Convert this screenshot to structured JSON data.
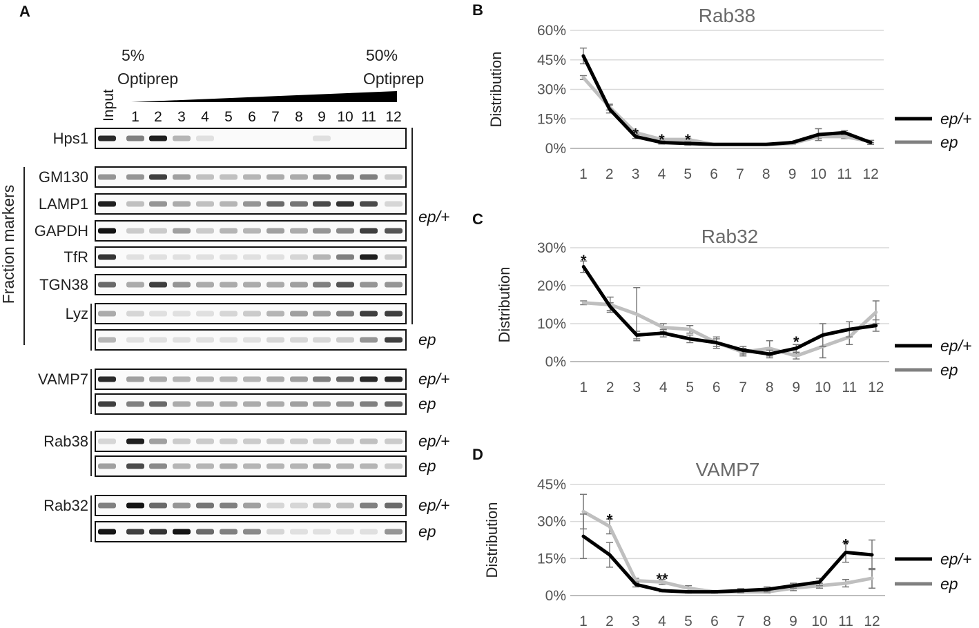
{
  "panelA": {
    "letter": "A",
    "gradient": {
      "start_pct": "5%",
      "start_label": "Optiprep",
      "end_pct": "50%",
      "end_label": "Optiprep"
    },
    "input_label": "Input",
    "lanes": [
      "1",
      "2",
      "3",
      "4",
      "5",
      "6",
      "7",
      "8",
      "9",
      "10",
      "11",
      "12"
    ],
    "fraction_markers_label": "Fraction markers",
    "rows": [
      {
        "label": "Hps1",
        "genotype": ""
      },
      {
        "label": "GM130",
        "genotype": ""
      },
      {
        "label": "LAMP1",
        "genotype": ""
      },
      {
        "label": "GAPDH",
        "genotype": ""
      },
      {
        "label": "TfR",
        "genotype": ""
      },
      {
        "label": "TGN38",
        "genotype": ""
      },
      {
        "label": "Lyz",
        "genotype": ""
      },
      {
        "label": "",
        "genotype": "ep"
      },
      {
        "label": "VAMP7",
        "genotype": "ep/+"
      },
      {
        "label": "",
        "genotype": "ep"
      },
      {
        "label": "Rab38",
        "genotype": "ep/+"
      },
      {
        "label": "",
        "genotype": "ep"
      },
      {
        "label": "Rab32",
        "genotype": "ep/+"
      },
      {
        "label": "",
        "genotype": "ep"
      }
    ],
    "marker_group_genotype": "ep/+"
  },
  "colors": {
    "ep_plus": "#000000",
    "ep": "#bfbfbf",
    "ep_legend": "#808080",
    "grid": "#d9d9d9"
  },
  "chart_data": [
    {
      "type": "line",
      "letter": "B",
      "title": "Rab38",
      "ylabel": "Distribution",
      "x": [
        "1",
        "2",
        "3",
        "4",
        "5",
        "6",
        "7",
        "8",
        "9",
        "10",
        "11",
        "12"
      ],
      "yticks": [
        "0%",
        "15%",
        "30%",
        "45%",
        "60%"
      ],
      "ylim": [
        0,
        60
      ],
      "series": [
        {
          "name": "ep/+",
          "values": [
            47,
            20,
            6,
            3,
            2.5,
            2,
            2,
            2,
            3,
            7,
            8,
            3
          ],
          "err": [
            4,
            2,
            1,
            0.8,
            0.8,
            0.5,
            0.5,
            0.5,
            0.5,
            3,
            1,
            1
          ]
        },
        {
          "name": "ep",
          "values": [
            36,
            21,
            8,
            4.5,
            4.5,
            2,
            2,
            2,
            2.5,
            6,
            6,
            3.5
          ],
          "err": [
            1,
            1.5,
            0.8,
            0.6,
            0.6,
            0.4,
            0.4,
            0.4,
            0.4,
            1,
            1,
            0.6
          ]
        }
      ],
      "annotations": [
        {
          "x": 3,
          "y": 9,
          "text": "*"
        },
        {
          "x": 4,
          "y": 6,
          "text": "*"
        },
        {
          "x": 5,
          "y": 6,
          "text": "*"
        }
      ],
      "legend": [
        "ep/+",
        "ep"
      ]
    },
    {
      "type": "line",
      "letter": "C",
      "title": "Rab32",
      "ylabel": "Distribution",
      "x": [
        "1",
        "2",
        "3",
        "4",
        "5",
        "6",
        "7",
        "8",
        "9",
        "10",
        "11",
        "12"
      ],
      "yticks": [
        "0%",
        "10%",
        "20%",
        "30%"
      ],
      "ylim": [
        0,
        30
      ],
      "series": [
        {
          "name": "ep/+",
          "values": [
            25,
            14.5,
            7,
            7.5,
            6,
            5,
            3,
            2,
            3.5,
            7,
            8.5,
            9.5
          ],
          "err": [
            1.5,
            1,
            1,
            1,
            1,
            1,
            1,
            1,
            1,
            3,
            2,
            1.5
          ]
        },
        {
          "name": "ep",
          "values": [
            15.5,
            15,
            12.5,
            9,
            8.5,
            5,
            2.5,
            3.5,
            1.5,
            4,
            6.5,
            13
          ],
          "err": [
            0.5,
            2,
            7,
            1,
            1,
            1.5,
            1,
            2,
            0.8,
            3,
            2,
            3
          ]
        }
      ],
      "annotations": [
        {
          "x": 1,
          "y": 27.5,
          "text": "*"
        },
        {
          "x": 9,
          "y": 6,
          "text": "*"
        }
      ],
      "legend": [
        "ep/+",
        "ep"
      ]
    },
    {
      "type": "line",
      "letter": "D",
      "title": "VAMP7",
      "ylabel": "Distribution",
      "x": [
        "1",
        "2",
        "3",
        "4",
        "5",
        "6",
        "7",
        "8",
        "9",
        "10",
        "11",
        "12"
      ],
      "yticks": [
        "0%",
        "15%",
        "30%",
        "45%"
      ],
      "ylim": [
        0,
        45
      ],
      "series": [
        {
          "name": "ep/+",
          "values": [
            24,
            16.5,
            4.5,
            2,
            1.5,
            1.5,
            2,
            2.5,
            4,
            5.5,
            17.5,
            16.5
          ],
          "err": [
            9,
            5,
            1,
            0.5,
            0.5,
            0.5,
            0.8,
            1,
            1,
            1.5,
            4,
            6
          ]
        },
        {
          "name": "ep",
          "values": [
            34,
            28,
            6,
            5.5,
            3,
            1.5,
            1.5,
            1.5,
            3,
            4,
            5,
            7
          ],
          "err": [
            7,
            3,
            1,
            1,
            1,
            0.5,
            0.5,
            0.5,
            1,
            1,
            1.5,
            4
          ]
        }
      ],
      "annotations": [
        {
          "x": 2,
          "y": 32,
          "text": "*"
        },
        {
          "x": 4,
          "y": 8,
          "text": "**"
        },
        {
          "x": 11,
          "y": 22,
          "text": "*"
        }
      ],
      "legend": [
        "ep/+",
        "ep"
      ]
    }
  ]
}
